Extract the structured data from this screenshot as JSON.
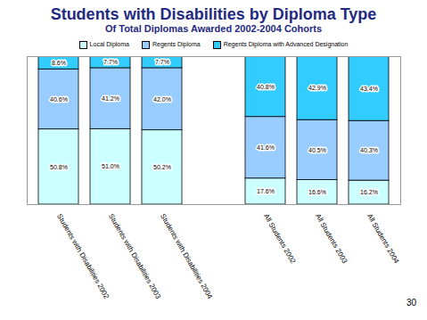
{
  "chart_data": {
    "type": "bar",
    "title": "Students with Disabilities by Diploma Type",
    "subtitle": "Of Total Diplomas Awarded 2002-2004 Cohorts",
    "footer": "30",
    "categories": [
      "Students with Disabilities 2002",
      "Students with Disabilities 2003",
      "Students with Disabilities 2004",
      null,
      "All Students 2002",
      "All Students 2003",
      "All Students 2004"
    ],
    "series": [
      {
        "name": "Local Diploma",
        "color": "#ccffff",
        "values": [
          50.8,
          51.0,
          50.2,
          null,
          17.6,
          16.6,
          16.2
        ],
        "value_labels": [
          "50.8%",
          "51.0%",
          "50.2%",
          null,
          "17.6%",
          "16.6%",
          "16.2%"
        ]
      },
      {
        "name": "Regents Diploma",
        "color": "#99ccff",
        "values": [
          40.6,
          41.2,
          42.0,
          null,
          41.6,
          40.5,
          40.3
        ],
        "value_labels": [
          "40.6%",
          "41.2%",
          "42.0%",
          null,
          "41.6%",
          "40.5%",
          "40.3%"
        ]
      },
      {
        "name": "Regents Diploma with Advanced Designation",
        "color": "#33ccff",
        "values": [
          8.6,
          7.7,
          7.7,
          null,
          40.8,
          42.9,
          43.4
        ],
        "value_labels": [
          "8.6%",
          "7.7%",
          "7.7%",
          null,
          "40.8%",
          "42.9%",
          "43.4%"
        ]
      }
    ],
    "ylim": [
      0,
      100
    ],
    "stacked": true,
    "data_labels": true,
    "tick_labels": "x",
    "legend": "top"
  }
}
